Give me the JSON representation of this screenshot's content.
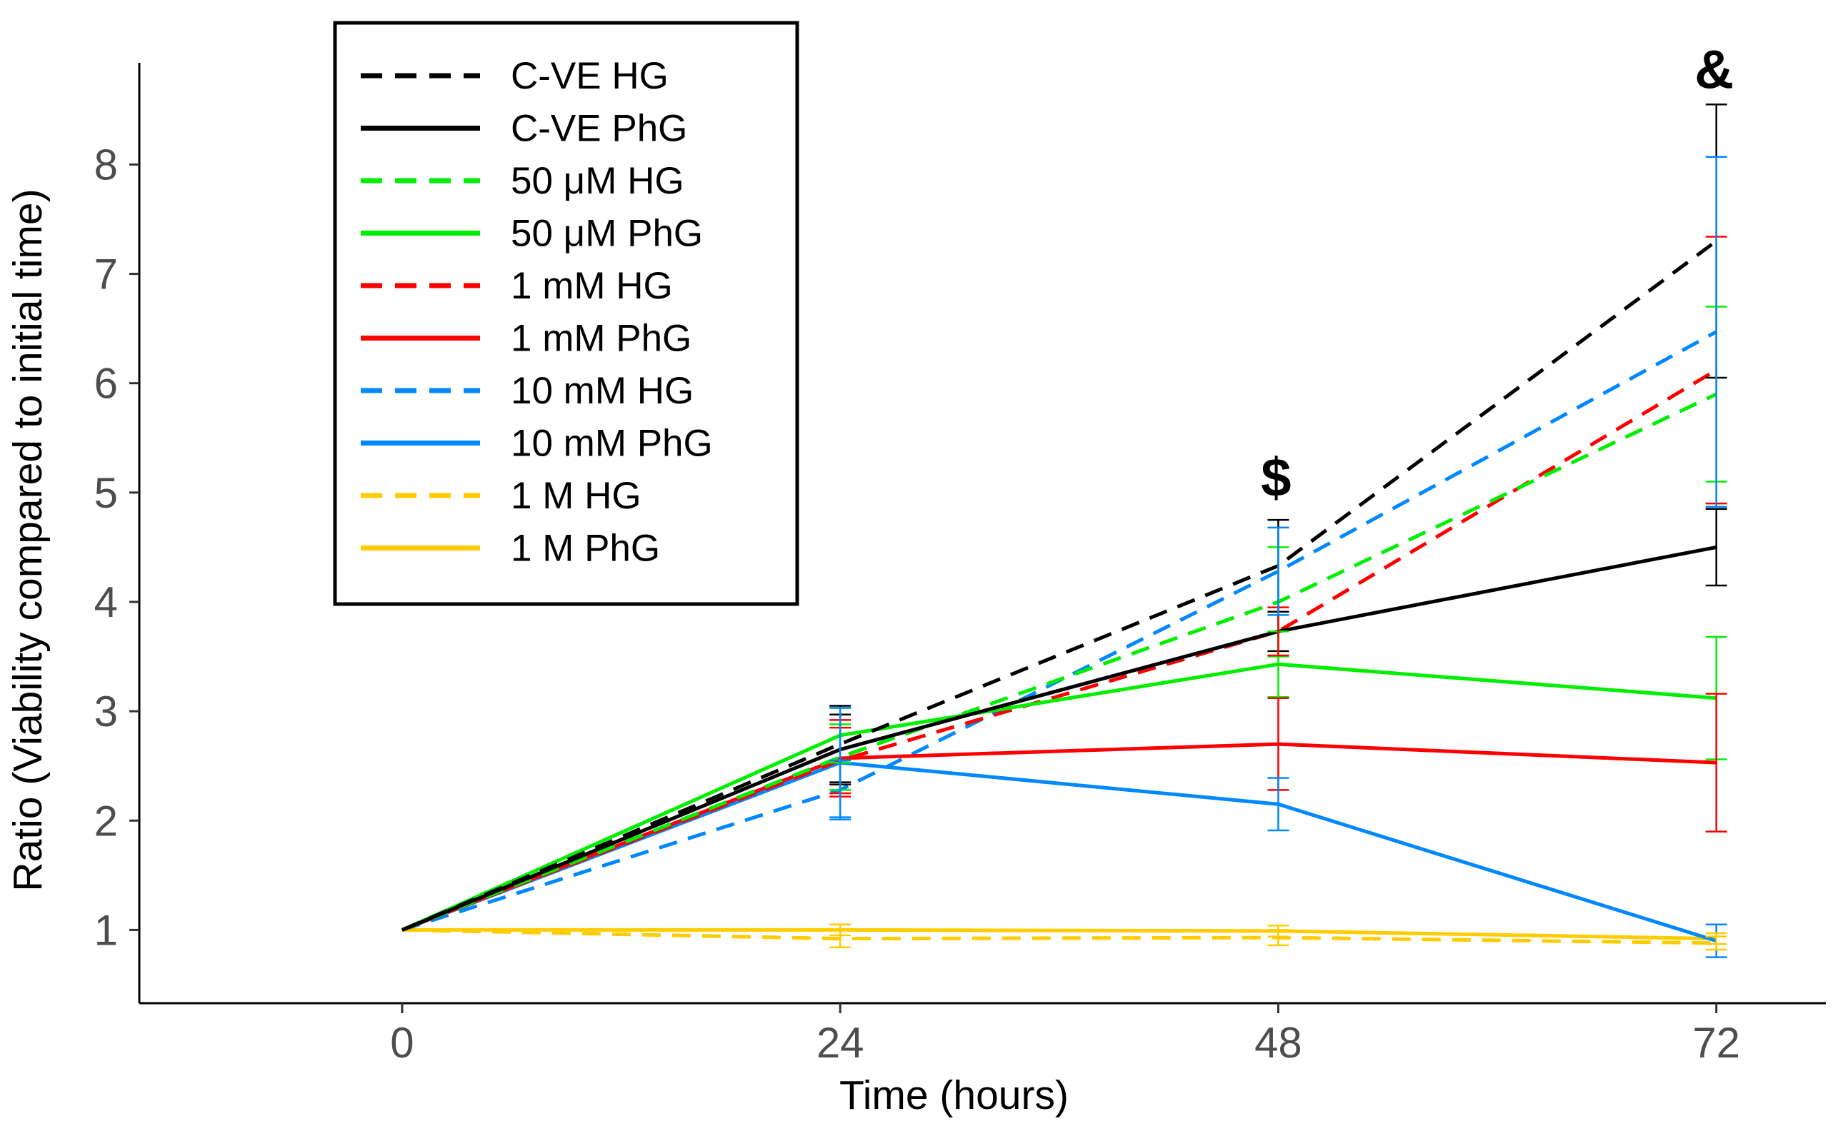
{
  "chart_data": {
    "type": "line",
    "title": "",
    "xlabel": "Time (hours)",
    "ylabel": "Ratio (Viability compared to initial time)",
    "x": [
      0,
      24,
      48,
      72
    ],
    "x_tick_labels": [
      "0",
      "24",
      "48",
      "72"
    ],
    "y_ticks": [
      1,
      2,
      3,
      4,
      5,
      6,
      7,
      8
    ],
    "y_tick_labels": [
      "1",
      "2",
      "3",
      "4",
      "5",
      "6",
      "7",
      "8"
    ],
    "xlim": [
      -14.4,
      78
    ],
    "ylim": [
      0.33,
      8.93
    ],
    "grid": false,
    "legend_position": "top-left",
    "series": [
      {
        "name": "C-VE HG",
        "color": "#000000",
        "dashed": true,
        "values": [
          1,
          2.7,
          4.33,
          7.3
        ],
        "errors": [
          null,
          0.35,
          0.42,
          1.25
        ]
      },
      {
        "name": "C-VE PhG",
        "color": "#000000",
        "dashed": false,
        "values": [
          1,
          2.65,
          3.73,
          4.5
        ],
        "errors": [
          null,
          0.32,
          0.18,
          0.35
        ]
      },
      {
        "name": "50 μM HG",
        "color": "#00ee00",
        "dashed": true,
        "values": [
          1,
          2.58,
          4.0,
          5.9
        ],
        "errors": [
          null,
          0.3,
          0.5,
          0.8
        ]
      },
      {
        "name": "50 μM PhG",
        "color": "#00ee00",
        "dashed": false,
        "values": [
          1,
          2.78,
          3.43,
          3.12
        ],
        "errors": [
          null,
          0.25,
          0.3,
          0.56
        ]
      },
      {
        "name": "1 mM HG",
        "color": "#ff0000",
        "dashed": true,
        "values": [
          1,
          2.55,
          3.73,
          6.12
        ],
        "errors": [
          null,
          0.3,
          0.22,
          1.22
        ]
      },
      {
        "name": "1 mM PhG",
        "color": "#ff0000",
        "dashed": false,
        "values": [
          1,
          2.57,
          2.7,
          2.53
        ],
        "errors": [
          null,
          0.35,
          0.42,
          0.63
        ]
      },
      {
        "name": "10 mM HG",
        "color": "#0088ff",
        "dashed": true,
        "values": [
          1,
          2.28,
          4.28,
          6.47
        ],
        "errors": [
          null,
          0.27,
          0.4,
          1.6
        ]
      },
      {
        "name": "10 mM PhG",
        "color": "#0088ff",
        "dashed": false,
        "values": [
          1,
          2.53,
          2.15,
          0.9
        ],
        "errors": [
          null,
          0.5,
          0.24,
          0.15
        ]
      },
      {
        "name": "1 M HG",
        "color": "#ffcc00",
        "dashed": true,
        "values": [
          1,
          0.92,
          0.93,
          0.88
        ],
        "errors": [
          null,
          0.08,
          0.07,
          0.06
        ]
      },
      {
        "name": "1 M PhG",
        "color": "#ffcc00",
        "dashed": false,
        "values": [
          1,
          1.0,
          0.99,
          0.92
        ],
        "errors": [
          null,
          0.05,
          0.05,
          0.05
        ]
      }
    ],
    "annotations": [
      {
        "text": "$",
        "x": 48,
        "y": 5.15
      },
      {
        "text": "&",
        "x": 72,
        "y": 8.88
      }
    ]
  }
}
